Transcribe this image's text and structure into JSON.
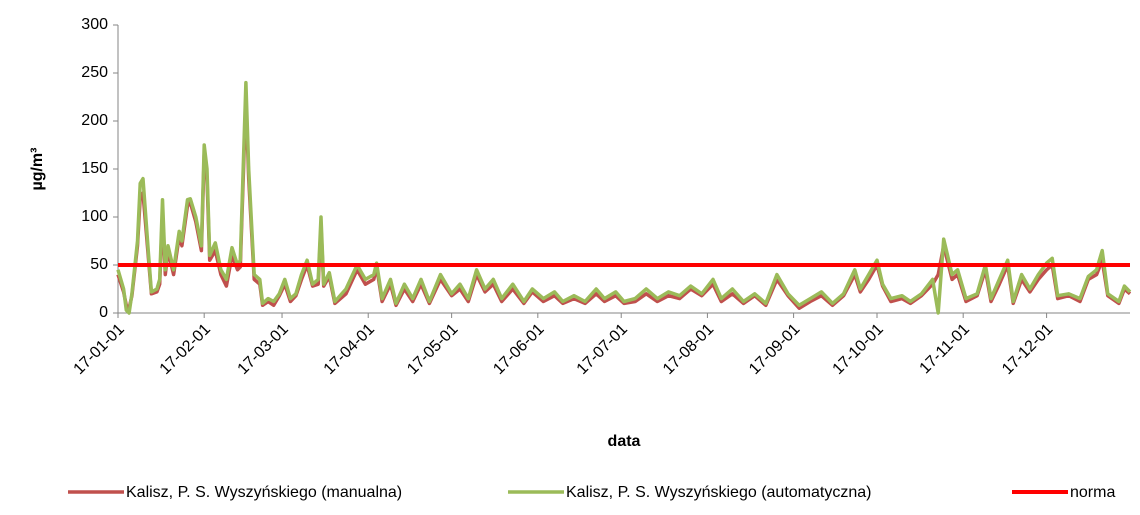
{
  "chart_data": {
    "type": "line",
    "x_label": "data",
    "y_label": "µg/m³",
    "x": [
      "17-01-01",
      "17-01-03",
      "17-01-04",
      "17-01-05",
      "17-01-06",
      "17-01-08",
      "17-01-09",
      "17-01-10",
      "17-01-12",
      "17-01-13",
      "17-01-15",
      "17-01-16",
      "17-01-17",
      "17-01-18",
      "17-01-19",
      "17-01-21",
      "17-01-23",
      "17-01-24",
      "17-01-26",
      "17-01-27",
      "17-01-29",
      "17-01-31",
      "17-02-01",
      "17-02-02",
      "17-02-03",
      "17-02-05",
      "17-02-07",
      "17-02-09",
      "17-02-11",
      "17-02-13",
      "17-02-14",
      "17-02-16",
      "17-02-17",
      "17-02-19",
      "17-02-21",
      "17-02-22",
      "17-02-24",
      "17-02-26",
      "17-02-28",
      "17-03-02",
      "17-03-04",
      "17-03-06",
      "17-03-08",
      "17-03-10",
      "17-03-12",
      "17-03-14",
      "17-03-15",
      "17-03-16",
      "17-03-18",
      "17-03-20",
      "17-03-24",
      "17-03-28",
      "17-03-31",
      "17-04-03",
      "17-04-04",
      "17-04-06",
      "17-04-09",
      "17-04-11",
      "17-04-14",
      "17-04-17",
      "17-04-20",
      "17-04-23",
      "17-04-27",
      "17-05-01",
      "17-05-04",
      "17-05-07",
      "17-05-10",
      "17-05-13",
      "17-05-16",
      "17-05-19",
      "17-05-23",
      "17-05-27",
      "17-05-30",
      "17-06-03",
      "17-06-07",
      "17-06-10",
      "17-06-14",
      "17-06-18",
      "17-06-22",
      "17-06-25",
      "17-06-29",
      "17-07-02",
      "17-07-06",
      "17-07-10",
      "17-07-14",
      "17-07-18",
      "17-07-22",
      "17-07-26",
      "17-07-30",
      "17-08-03",
      "17-08-06",
      "17-08-10",
      "17-08-14",
      "17-08-18",
      "17-08-22",
      "17-08-26",
      "17-08-30",
      "17-09-03",
      "17-09-07",
      "17-09-11",
      "17-09-15",
      "17-09-19",
      "17-09-23",
      "17-09-25",
      "17-09-28",
      "17-10-01",
      "17-10-03",
      "17-10-06",
      "17-10-10",
      "17-10-13",
      "17-10-17",
      "17-10-21",
      "17-10-23",
      "17-10-25",
      "17-10-28",
      "17-10-30",
      "17-11-02",
      "17-11-06",
      "17-11-09",
      "17-11-11",
      "17-11-14",
      "17-11-17",
      "17-11-19",
      "17-11-22",
      "17-11-25",
      "17-11-28",
      "17-12-01",
      "17-12-03",
      "17-12-05",
      "17-12-09",
      "17-12-13",
      "17-12-16",
      "17-12-19",
      "17-12-21",
      "17-12-23",
      "17-12-27",
      "17-12-29",
      "17-12-31"
    ],
    "series": [
      {
        "name": "Kalisz, P. S. Wyszyńskiego (manualna)",
        "color": "#c0504d",
        "values": [
          40,
          22,
          8,
          5,
          18,
          70,
          120,
          125,
          55,
          20,
          22,
          30,
          105,
          40,
          65,
          40,
          80,
          70,
          112,
          115,
          95,
          65,
          165,
          140,
          55,
          65,
          40,
          28,
          60,
          45,
          48,
          225,
          140,
          35,
          30,
          8,
          12,
          8,
          18,
          30,
          12,
          18,
          35,
          50,
          28,
          30,
          90,
          28,
          38,
          10,
          20,
          45,
          30,
          35,
          48,
          12,
          30,
          8,
          25,
          12,
          30,
          10,
          35,
          18,
          25,
          12,
          40,
          22,
          30,
          12,
          25,
          10,
          22,
          12,
          18,
          10,
          15,
          10,
          20,
          12,
          18,
          10,
          12,
          20,
          12,
          18,
          15,
          25,
          18,
          30,
          12,
          20,
          10,
          18,
          8,
          35,
          18,
          5,
          12,
          18,
          8,
          18,
          40,
          22,
          35,
          50,
          28,
          12,
          15,
          10,
          18,
          30,
          40,
          70,
          35,
          40,
          12,
          18,
          45,
          12,
          30,
          50,
          10,
          35,
          22,
          35,
          45,
          50,
          15,
          18,
          12,
          35,
          40,
          55,
          18,
          10,
          25,
          20
        ]
      },
      {
        "name": "Kalisz, P. S. Wyszyńskiego (automatyczna)",
        "color": "#9bbb59",
        "values": [
          45,
          25,
          3,
          0,
          20,
          75,
          135,
          140,
          60,
          22,
          25,
          35,
          118,
          45,
          70,
          45,
          85,
          75,
          118,
          119,
          100,
          70,
          175,
          150,
          60,
          73,
          45,
          35,
          68,
          50,
          55,
          240,
          150,
          40,
          35,
          10,
          15,
          12,
          20,
          35,
          15,
          20,
          40,
          55,
          30,
          35,
          100,
          30,
          42,
          12,
          25,
          50,
          35,
          40,
          52,
          15,
          35,
          10,
          30,
          15,
          35,
          12,
          40,
          20,
          30,
          15,
          45,
          25,
          35,
          15,
          30,
          12,
          25,
          15,
          22,
          12,
          18,
          12,
          25,
          15,
          22,
          12,
          15,
          25,
          15,
          22,
          18,
          28,
          20,
          35,
          15,
          25,
          12,
          20,
          10,
          40,
          20,
          8,
          15,
          22,
          10,
          20,
          45,
          25,
          40,
          55,
          30,
          15,
          18,
          12,
          20,
          35,
          0,
          77,
          40,
          45,
          15,
          20,
          50,
          15,
          35,
          55,
          12,
          40,
          25,
          40,
          52,
          57,
          18,
          20,
          15,
          38,
          45,
          65,
          20,
          12,
          28,
          22
        ]
      }
    ],
    "reference": {
      "name": "norma",
      "color": "#ff0000",
      "value": 50
    },
    "xlim": [
      "17-01-01",
      "17-12-31"
    ],
    "xticks": [
      "17-01-01",
      "17-02-01",
      "17-03-01",
      "17-04-01",
      "17-05-01",
      "17-06-01",
      "17-07-01",
      "17-08-01",
      "17-09-01",
      "17-10-01",
      "17-11-01",
      "17-12-01"
    ],
    "ylim": [
      0,
      300
    ],
    "yticks": [
      0,
      50,
      100,
      150,
      200,
      250,
      300
    ],
    "grid": false,
    "legend": "bottom"
  }
}
